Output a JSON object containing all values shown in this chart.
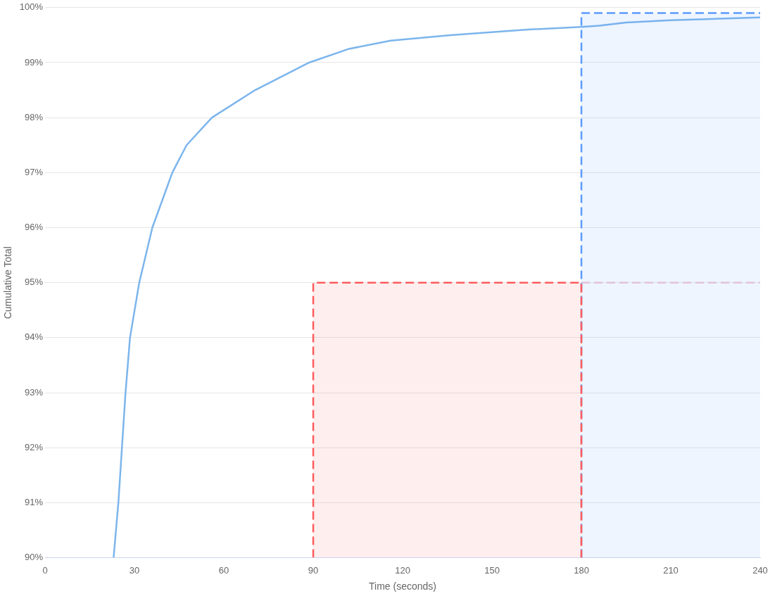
{
  "chart_data": {
    "type": "line",
    "xlabel": "Time (seconds)",
    "ylabel": "Cumulative Total",
    "xlim": [
      0,
      240
    ],
    "ylim": [
      90,
      100
    ],
    "xticks": [
      0,
      30,
      60,
      90,
      120,
      150,
      180,
      210,
      240
    ],
    "yticks": [
      {
        "value": 90,
        "label": "90%"
      },
      {
        "value": 91,
        "label": "91%"
      },
      {
        "value": 92,
        "label": "92%"
      },
      {
        "value": 93,
        "label": "93%"
      },
      {
        "value": 94,
        "label": "94%"
      },
      {
        "value": 95,
        "label": "95%"
      },
      {
        "value": 96,
        "label": "96%"
      },
      {
        "value": 97,
        "label": "97%"
      },
      {
        "value": 98,
        "label": "98%"
      },
      {
        "value": 99,
        "label": "99%"
      },
      {
        "value": 100,
        "label": "100%"
      }
    ],
    "grid": "y",
    "legend": false,
    "marker": "none",
    "line_style": "solid",
    "series": [
      {
        "type": "area",
        "color": "#ff5c5c",
        "line_style": "dashed",
        "x": [
          90,
          90,
          180,
          180
        ],
        "values": [
          90,
          95,
          95,
          90
        ]
      },
      {
        "type": "area",
        "color": "#5b9bff",
        "line_style": "dashed",
        "x": [
          180,
          180,
          240
        ],
        "values": [
          90,
          99.9,
          99.9
        ]
      },
      {
        "type": "line",
        "color": "#f3c8d6",
        "line_style": "dashed",
        "x": [
          180,
          240
        ],
        "values": [
          95,
          95
        ]
      },
      {
        "color": "#7cb5ec",
        "x": [
          23,
          24.6,
          25.8,
          27,
          28.5,
          31.6,
          36,
          42.7,
          47.5,
          56,
          70.5,
          88.6,
          102,
          116,
          136,
          162,
          180,
          186,
          195,
          210,
          240
        ],
        "values": [
          90,
          91,
          92,
          93,
          94,
          95,
          96,
          97,
          97.5,
          98,
          98.5,
          99,
          99.25,
          99.4,
          99.5,
          99.6,
          99.65,
          99.67,
          99.73,
          99.77,
          99.82
        ]
      }
    ]
  }
}
